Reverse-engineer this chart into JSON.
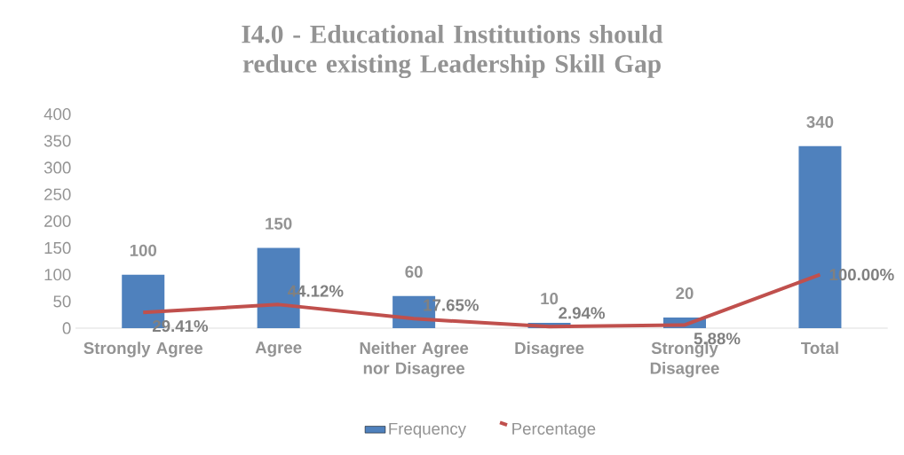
{
  "chart_data": {
    "type": "bar",
    "title": "I4.0 - Educational Institutions should reduce existing Leadership Skill Gap",
    "categories": [
      "Strongly Agree",
      "Agree",
      "Neither Agree nor Disagree",
      "Disagree",
      "Strongly Disagree",
      "Total"
    ],
    "series": [
      {
        "name": "Frequency",
        "color": "#4f81bd",
        "values": [
          100,
          150,
          60,
          10,
          20,
          340
        ],
        "value_labels": [
          "100",
          "150",
          "60",
          "10",
          "20",
          "340"
        ]
      },
      {
        "name": "Percentage",
        "type": "line",
        "color": "#c0504d",
        "values": [
          29.41,
          44.12,
          17.65,
          2.94,
          5.88,
          100
        ],
        "value_labels": [
          "29.41%",
          "44.12%",
          "17.65%",
          "2.94%",
          "5.88%",
          "100.00%"
        ]
      }
    ],
    "ylim": [
      0,
      400
    ],
    "yticks": [
      0,
      50,
      100,
      150,
      200,
      250,
      300,
      350,
      400
    ],
    "legend": "bottom"
  }
}
